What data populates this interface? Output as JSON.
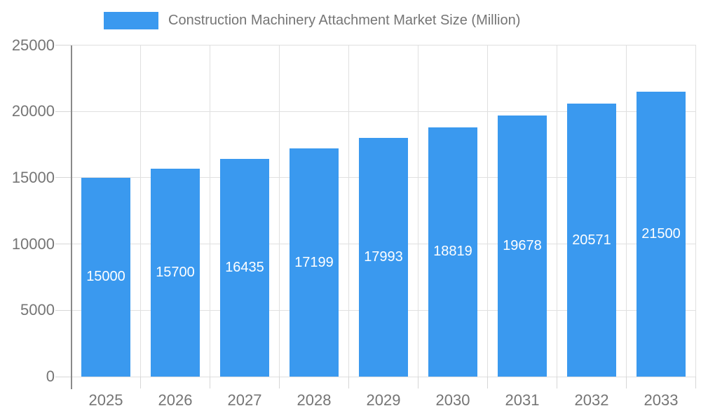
{
  "chart_data": {
    "type": "bar",
    "title": "Construction Machinery Attachment Market Size (Million)",
    "categories": [
      "2025",
      "2026",
      "2027",
      "2028",
      "2029",
      "2030",
      "2031",
      "2032",
      "2033"
    ],
    "values": [
      15000,
      15700,
      16435,
      17199,
      17993,
      18819,
      19678,
      20571,
      21500
    ],
    "xlabel": "",
    "ylabel": "",
    "ylim": [
      0,
      25000
    ],
    "yticks": [
      0,
      5000,
      10000,
      15000,
      20000,
      25000
    ],
    "grid": true,
    "legend_position": "top",
    "bar_labels_visible": true,
    "colors": {
      "bar": "#3a99ef",
      "bar_label": "#ffffff",
      "grid": "#e0e0e0",
      "axis_line": "#8a8a8a",
      "tick": "#d6d6d6",
      "axis_text": "#757575",
      "title_text": "#757575",
      "background": "#ffffff"
    }
  }
}
